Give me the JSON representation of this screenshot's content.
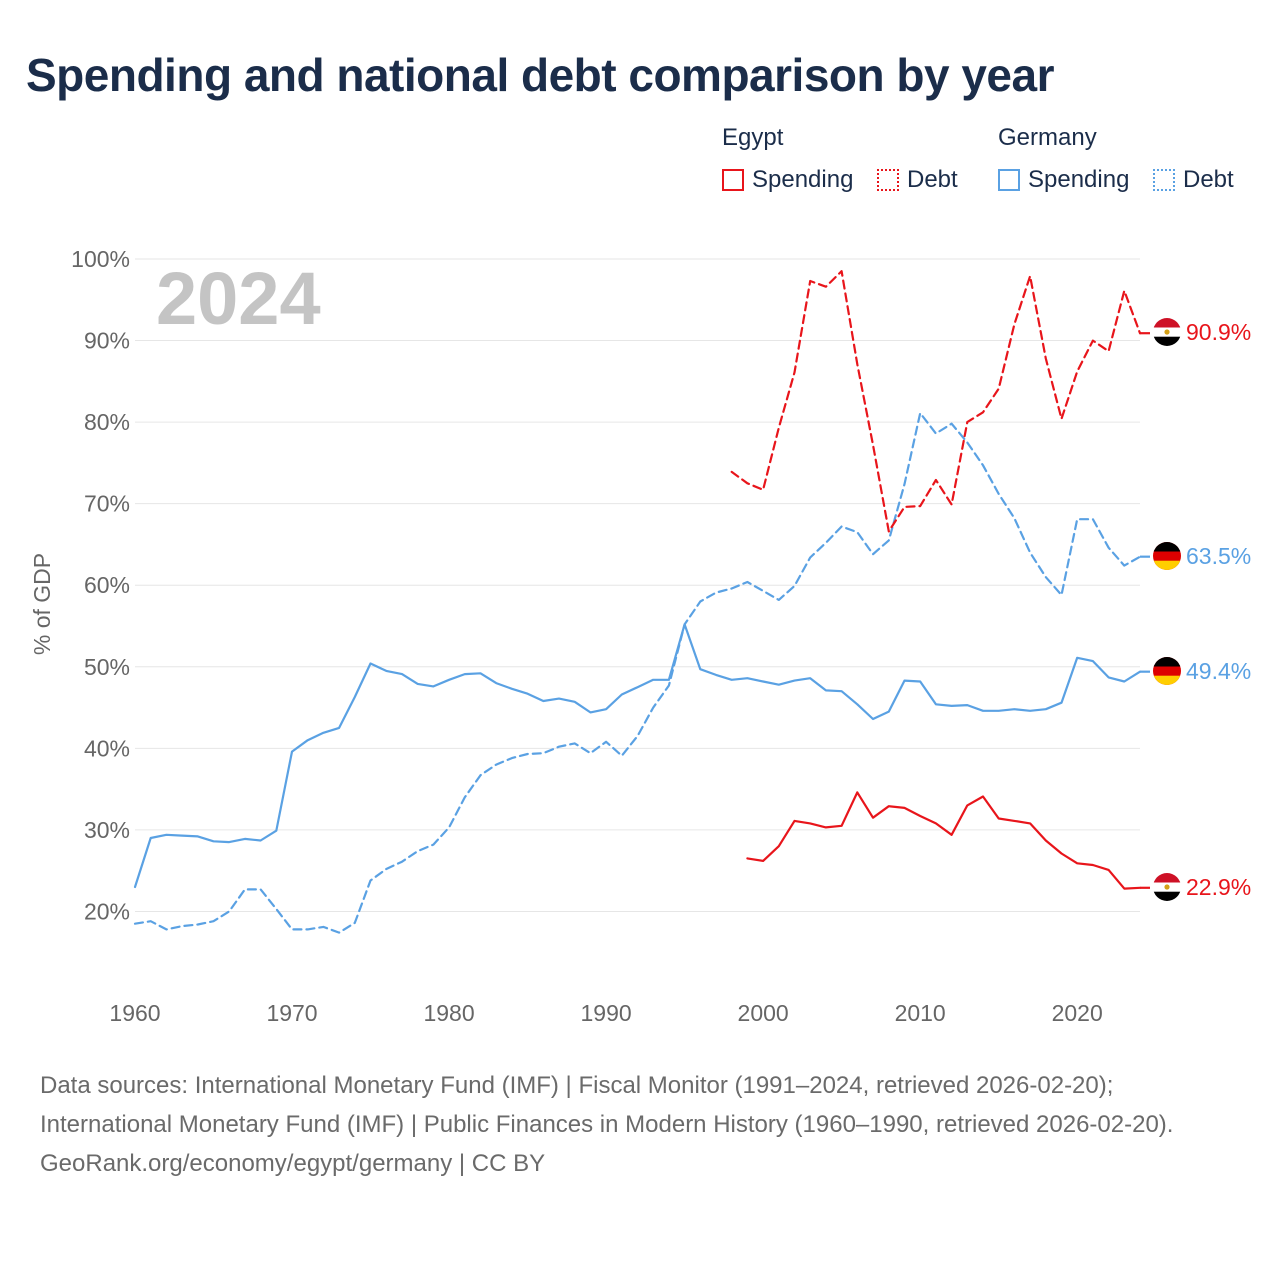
{
  "title": "Spending and national debt comparison by year",
  "legend": {
    "groups": [
      {
        "name": "Egypt",
        "color": "#e8151b",
        "items": [
          "Spending",
          "Debt"
        ]
      },
      {
        "name": "Germany",
        "color": "#5aa1e3",
        "items": [
          "Spending",
          "Debt"
        ]
      }
    ]
  },
  "year_label": "2024",
  "end_labels": {
    "egypt_debt": "90.9%",
    "germany_debt": "63.5%",
    "germany_spending": "49.4%",
    "egypt_spending": "22.9%"
  },
  "footer": {
    "sources": "Data sources: International Monetary Fund (IMF) | Fiscal Monitor (1991–2024, retrieved 2026-02-20); International Monetary Fund (IMF) | Public Finances in Modern History (1960–1990, retrieved 2026-02-20).",
    "credit": "GeoRank.org/economy/egypt/germany | CC BY"
  },
  "chart_data": {
    "type": "line",
    "title": "Spending and national debt comparison by year",
    "xlabel": "",
    "ylabel": "% of GDP",
    "xlim": [
      1960,
      2024
    ],
    "ylim": [
      10,
      100
    ],
    "x_ticks": [
      1960,
      1970,
      1980,
      1990,
      2000,
      2010,
      2020
    ],
    "y_ticks": [
      20,
      30,
      40,
      50,
      60,
      70,
      80,
      90,
      100
    ],
    "y_tick_labels": [
      "20%",
      "30%",
      "40%",
      "50%",
      "60%",
      "70%",
      "80%",
      "90%",
      "100%"
    ],
    "grid": true,
    "series": [
      {
        "name": "Germany Spending",
        "country": "Germany",
        "measure": "Spending",
        "color": "#5aa1e3",
        "style": "solid",
        "x": [
          1960,
          1961,
          1962,
          1963,
          1964,
          1965,
          1966,
          1967,
          1968,
          1969,
          1970,
          1971,
          1972,
          1973,
          1974,
          1975,
          1976,
          1977,
          1978,
          1979,
          1980,
          1981,
          1982,
          1983,
          1984,
          1985,
          1986,
          1987,
          1988,
          1989,
          1990,
          1991,
          1992,
          1993,
          1994,
          1995,
          1996,
          1997,
          1998,
          1999,
          2000,
          2001,
          2002,
          2003,
          2004,
          2005,
          2006,
          2007,
          2008,
          2009,
          2010,
          2011,
          2012,
          2013,
          2014,
          2015,
          2016,
          2017,
          2018,
          2019,
          2020,
          2021,
          2022,
          2023,
          2024
        ],
        "values": [
          23.0,
          29.0,
          29.4,
          29.3,
          29.2,
          28.6,
          28.5,
          28.9,
          28.7,
          29.9,
          39.6,
          41.0,
          41.9,
          42.5,
          46.3,
          50.4,
          49.5,
          49.1,
          47.9,
          47.6,
          48.4,
          49.1,
          49.2,
          48.0,
          47.3,
          46.7,
          45.8,
          46.1,
          45.7,
          44.4,
          44.8,
          46.6,
          47.5,
          48.4,
          48.4,
          55.2,
          49.7,
          49.0,
          48.4,
          48.6,
          48.2,
          47.8,
          48.3,
          48.6,
          47.1,
          47.0,
          45.4,
          43.6,
          44.5,
          48.3,
          48.2,
          45.4,
          45.2,
          45.3,
          44.6,
          44.6,
          44.8,
          44.6,
          44.8,
          45.6,
          51.1,
          50.7,
          48.7,
          48.2,
          49.4
        ]
      },
      {
        "name": "Germany Debt",
        "country": "Germany",
        "measure": "Debt",
        "color": "#5aa1e3",
        "style": "dashed",
        "x": [
          1960,
          1961,
          1962,
          1963,
          1964,
          1965,
          1966,
          1967,
          1968,
          1969,
          1970,
          1971,
          1972,
          1973,
          1974,
          1975,
          1976,
          1977,
          1978,
          1979,
          1980,
          1981,
          1982,
          1983,
          1984,
          1985,
          1986,
          1987,
          1988,
          1989,
          1990,
          1991,
          1992,
          1993,
          1994,
          1995,
          1996,
          1997,
          1998,
          1999,
          2000,
          2001,
          2002,
          2003,
          2004,
          2005,
          2006,
          2007,
          2008,
          2009,
          2010,
          2011,
          2012,
          2013,
          2014,
          2015,
          2016,
          2017,
          2018,
          2019,
          2020,
          2021,
          2022,
          2023,
          2024
        ],
        "values": [
          18.5,
          18.8,
          17.8,
          18.2,
          18.4,
          18.8,
          20.0,
          22.7,
          22.7,
          20.3,
          17.8,
          17.8,
          18.1,
          17.4,
          18.6,
          23.8,
          25.2,
          26.1,
          27.4,
          28.2,
          30.3,
          34.0,
          36.7,
          38.0,
          38.8,
          39.3,
          39.4,
          40.2,
          40.6,
          39.4,
          40.8,
          39.1,
          41.5,
          45.0,
          47.7,
          55.2,
          58.0,
          59.1,
          59.6,
          60.4,
          59.3,
          58.2,
          59.9,
          63.4,
          65.2,
          67.2,
          66.5,
          63.8,
          65.5,
          72.4,
          81.1,
          78.6,
          79.8,
          77.5,
          74.7,
          71.2,
          68.2,
          64.0,
          61.0,
          58.8,
          68.1,
          68.1,
          64.6,
          62.4,
          63.5
        ]
      },
      {
        "name": "Egypt Debt",
        "country": "Egypt",
        "measure": "Debt",
        "color": "#e8151b",
        "style": "dashed",
        "x": [
          1998,
          1999,
          2000,
          2001,
          2002,
          2003,
          2004,
          2005,
          2006,
          2007,
          2008,
          2009,
          2010,
          2011,
          2012,
          2013,
          2014,
          2015,
          2016,
          2017,
          2018,
          2019,
          2020,
          2021,
          2022,
          2023,
          2024
        ],
        "values": [
          73.9,
          72.5,
          71.7,
          79.3,
          86.1,
          97.3,
          96.6,
          98.5,
          87.1,
          77.2,
          66.6,
          69.6,
          69.7,
          72.9,
          69.9,
          80.0,
          81.2,
          84.1,
          92.0,
          97.9,
          87.8,
          80.4,
          86.2,
          90.0,
          88.7,
          96.1,
          90.9
        ]
      },
      {
        "name": "Egypt Spending",
        "country": "Egypt",
        "measure": "Spending",
        "color": "#e8151b",
        "style": "solid",
        "x": [
          1999,
          2000,
          2001,
          2002,
          2003,
          2004,
          2005,
          2006,
          2007,
          2008,
          2009,
          2010,
          2011,
          2012,
          2013,
          2014,
          2015,
          2016,
          2017,
          2018,
          2019,
          2020,
          2021,
          2022,
          2023,
          2024
        ],
        "values": [
          26.5,
          26.2,
          28.0,
          31.1,
          30.8,
          30.3,
          30.5,
          34.6,
          31.5,
          32.9,
          32.7,
          31.7,
          30.8,
          29.4,
          33.0,
          34.1,
          31.4,
          31.1,
          30.8,
          28.7,
          27.1,
          25.9,
          25.7,
          25.1,
          22.8,
          22.9
        ]
      }
    ]
  }
}
